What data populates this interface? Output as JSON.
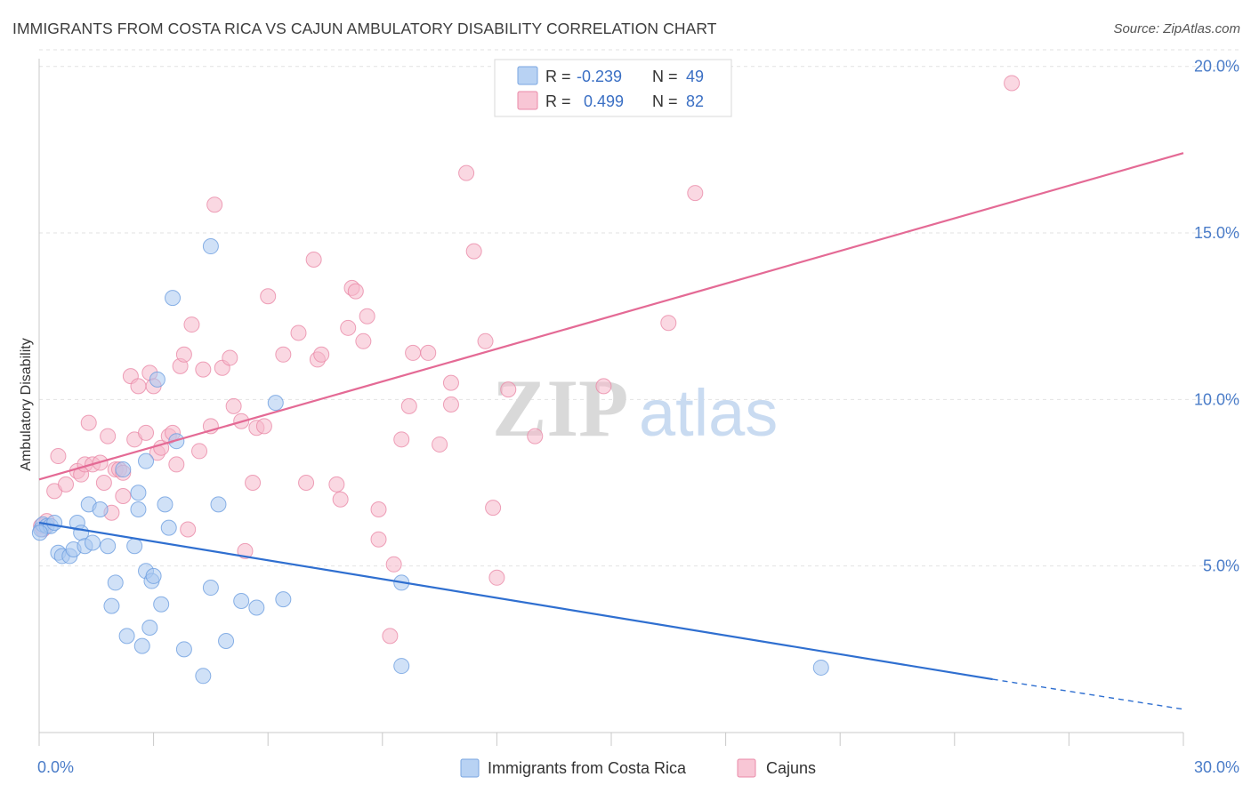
{
  "title": "IMMIGRANTS FROM COSTA RICA VS CAJUN AMBULATORY DISABILITY CORRELATION CHART",
  "source": "Source: ZipAtlas.com",
  "watermark": {
    "zip": "ZIP",
    "atlas": "atlas"
  },
  "legend": {
    "r_label": "R =",
    "n_label": "N =",
    "rows": [
      {
        "r": "-0.239",
        "n": "49",
        "color": "#a9c8f0",
        "stroke": "#6e9fe0"
      },
      {
        "r": "0.499",
        "n": "82",
        "color": "#f6b8cb",
        "stroke": "#ea8aa8"
      }
    ]
  },
  "bottom_legend": [
    "Immigrants from Costa Rica",
    "Cajuns"
  ],
  "chart_data": {
    "type": "scatter",
    "title": "IMMIGRANTS FROM COSTA RICA VS CAJUN AMBULATORY DISABILITY CORRELATION CHART",
    "xlabel": "",
    "ylabel": "Ambulatory Disability",
    "xlim": [
      0,
      30
    ],
    "ylim": [
      0,
      20.5
    ],
    "x_tick_labels": [
      "0.0%",
      "30.0%"
    ],
    "y_ticks": [
      5,
      10,
      15,
      20
    ],
    "y_tick_labels": [
      "5.0%",
      "10.0%",
      "15.0%",
      "20.0%"
    ],
    "grid": true,
    "legend_position": "top-center",
    "series": [
      {
        "name": "Immigrants from Costa Rica",
        "color": "#6e9fe0",
        "fill": "#a9c8f0",
        "line_color": "#2f6fd0",
        "trend": {
          "x0": 0,
          "y0": 6.3,
          "x1": 25,
          "y1": 1.6,
          "dashed_to_x": 30,
          "dashed_to_y": 0.7
        },
        "points": [
          [
            0.05,
            6.1
          ],
          [
            0.1,
            6.25
          ],
          [
            0.2,
            6.2
          ],
          [
            0.3,
            6.2
          ],
          [
            0.4,
            6.3
          ],
          [
            0.5,
            5.4
          ],
          [
            0.6,
            5.3
          ],
          [
            0.8,
            5.3
          ],
          [
            0.9,
            5.5
          ],
          [
            1.0,
            6.3
          ],
          [
            1.1,
            6.0
          ],
          [
            1.2,
            5.6
          ],
          [
            1.3,
            6.85
          ],
          [
            1.4,
            5.7
          ],
          [
            1.6,
            6.7
          ],
          [
            1.8,
            5.6
          ],
          [
            1.9,
            3.8
          ],
          [
            2.0,
            4.5
          ],
          [
            2.2,
            7.9
          ],
          [
            2.3,
            2.9
          ],
          [
            2.5,
            5.6
          ],
          [
            2.6,
            7.2
          ],
          [
            2.6,
            6.7
          ],
          [
            2.7,
            2.6
          ],
          [
            2.8,
            4.85
          ],
          [
            2.8,
            8.15
          ],
          [
            2.9,
            3.15
          ],
          [
            2.95,
            4.55
          ],
          [
            3.0,
            4.7
          ],
          [
            3.1,
            10.6
          ],
          [
            3.2,
            3.85
          ],
          [
            3.3,
            6.85
          ],
          [
            3.4,
            6.15
          ],
          [
            3.5,
            13.05
          ],
          [
            3.6,
            8.75
          ],
          [
            3.8,
            2.5
          ],
          [
            4.3,
            1.7
          ],
          [
            4.5,
            4.35
          ],
          [
            4.5,
            14.6
          ],
          [
            4.7,
            6.85
          ],
          [
            4.9,
            2.75
          ],
          [
            5.3,
            3.95
          ],
          [
            5.7,
            3.75
          ],
          [
            6.2,
            9.9
          ],
          [
            6.4,
            4.0
          ],
          [
            9.5,
            4.5
          ],
          [
            9.5,
            2.0
          ],
          [
            20.5,
            1.95
          ],
          [
            0.02,
            6.0
          ]
        ]
      },
      {
        "name": "Cajuns",
        "color": "#ea8aa8",
        "fill": "#f6b8cb",
        "line_color": "#e46a95",
        "trend": {
          "x0": 0,
          "y0": 7.6,
          "x1": 30,
          "y1": 17.4
        },
        "points": [
          [
            0.05,
            6.2
          ],
          [
            0.2,
            6.35
          ],
          [
            0.4,
            7.25
          ],
          [
            0.5,
            8.3
          ],
          [
            0.7,
            7.45
          ],
          [
            1.0,
            7.85
          ],
          [
            1.1,
            7.75
          ],
          [
            1.2,
            8.05
          ],
          [
            1.3,
            9.3
          ],
          [
            1.4,
            8.05
          ],
          [
            1.6,
            8.1
          ],
          [
            1.7,
            7.5
          ],
          [
            1.8,
            8.9
          ],
          [
            1.9,
            6.6
          ],
          [
            2.0,
            7.9
          ],
          [
            2.1,
            7.9
          ],
          [
            2.2,
            7.1
          ],
          [
            2.2,
            7.8
          ],
          [
            2.4,
            10.7
          ],
          [
            2.5,
            8.8
          ],
          [
            2.6,
            10.4
          ],
          [
            2.8,
            9.0
          ],
          [
            2.9,
            10.8
          ],
          [
            3.0,
            10.4
          ],
          [
            3.1,
            8.4
          ],
          [
            3.2,
            8.55
          ],
          [
            3.4,
            8.9
          ],
          [
            3.5,
            9.0
          ],
          [
            3.6,
            8.05
          ],
          [
            3.7,
            11.0
          ],
          [
            3.8,
            11.35
          ],
          [
            3.9,
            6.1
          ],
          [
            4.0,
            12.25
          ],
          [
            4.2,
            8.45
          ],
          [
            4.3,
            10.9
          ],
          [
            4.5,
            9.2
          ],
          [
            4.6,
            15.85
          ],
          [
            4.8,
            10.95
          ],
          [
            5.0,
            11.25
          ],
          [
            5.1,
            9.8
          ],
          [
            5.3,
            9.35
          ],
          [
            5.4,
            5.45
          ],
          [
            5.6,
            7.5
          ],
          [
            5.7,
            9.15
          ],
          [
            5.9,
            9.2
          ],
          [
            6.0,
            13.1
          ],
          [
            6.4,
            11.35
          ],
          [
            6.8,
            12.0
          ],
          [
            7.0,
            7.5
          ],
          [
            7.2,
            14.2
          ],
          [
            7.3,
            11.2
          ],
          [
            7.4,
            11.35
          ],
          [
            7.8,
            7.45
          ],
          [
            7.9,
            7.0
          ],
          [
            8.1,
            12.15
          ],
          [
            8.2,
            13.35
          ],
          [
            8.3,
            13.25
          ],
          [
            8.5,
            11.75
          ],
          [
            8.6,
            12.5
          ],
          [
            8.9,
            6.7
          ],
          [
            8.9,
            5.8
          ],
          [
            9.2,
            2.9
          ],
          [
            9.3,
            5.05
          ],
          [
            9.5,
            8.8
          ],
          [
            9.7,
            9.8
          ],
          [
            9.8,
            11.4
          ],
          [
            10.2,
            11.4
          ],
          [
            10.5,
            8.65
          ],
          [
            10.8,
            10.5
          ],
          [
            10.8,
            9.85
          ],
          [
            11.2,
            16.8
          ],
          [
            11.4,
            14.45
          ],
          [
            11.7,
            11.75
          ],
          [
            11.9,
            6.75
          ],
          [
            12.0,
            4.65
          ],
          [
            12.3,
            10.3
          ],
          [
            13.0,
            8.9
          ],
          [
            14.8,
            10.4
          ],
          [
            16.5,
            12.3
          ],
          [
            17.2,
            16.2
          ],
          [
            25.5,
            19.5
          ],
          [
            0.1,
            6.1
          ]
        ]
      }
    ]
  }
}
